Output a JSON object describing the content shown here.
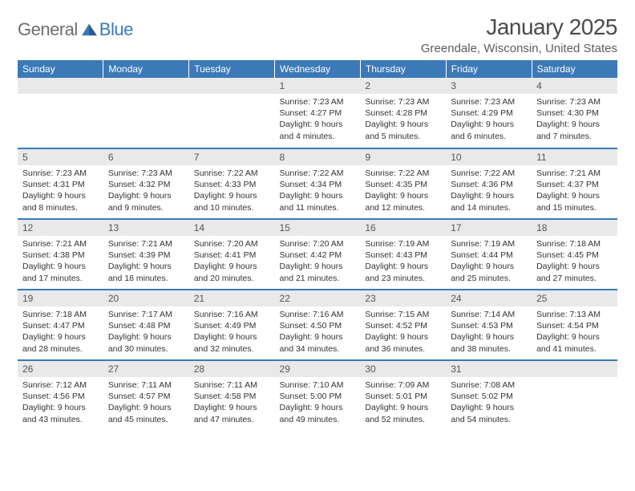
{
  "logo": {
    "general": "General",
    "blue": "Blue"
  },
  "title": "January 2025",
  "location": "Greendale, Wisconsin, United States",
  "colors": {
    "header_bg": "#3b79b7",
    "header_text": "#ffffff",
    "daynum_bg": "#e9e9e9",
    "border": "#3b79b7",
    "logo_gray": "#6d6d6d",
    "logo_blue": "#3b79b7"
  },
  "weekdays": [
    "Sunday",
    "Monday",
    "Tuesday",
    "Wednesday",
    "Thursday",
    "Friday",
    "Saturday"
  ],
  "weeks": [
    [
      null,
      null,
      null,
      {
        "n": "1",
        "sr": "7:23 AM",
        "ss": "4:27 PM",
        "dl": "9 hours and 4 minutes."
      },
      {
        "n": "2",
        "sr": "7:23 AM",
        "ss": "4:28 PM",
        "dl": "9 hours and 5 minutes."
      },
      {
        "n": "3",
        "sr": "7:23 AM",
        "ss": "4:29 PM",
        "dl": "9 hours and 6 minutes."
      },
      {
        "n": "4",
        "sr": "7:23 AM",
        "ss": "4:30 PM",
        "dl": "9 hours and 7 minutes."
      }
    ],
    [
      {
        "n": "5",
        "sr": "7:23 AM",
        "ss": "4:31 PM",
        "dl": "9 hours and 8 minutes."
      },
      {
        "n": "6",
        "sr": "7:23 AM",
        "ss": "4:32 PM",
        "dl": "9 hours and 9 minutes."
      },
      {
        "n": "7",
        "sr": "7:22 AM",
        "ss": "4:33 PM",
        "dl": "9 hours and 10 minutes."
      },
      {
        "n": "8",
        "sr": "7:22 AM",
        "ss": "4:34 PM",
        "dl": "9 hours and 11 minutes."
      },
      {
        "n": "9",
        "sr": "7:22 AM",
        "ss": "4:35 PM",
        "dl": "9 hours and 12 minutes."
      },
      {
        "n": "10",
        "sr": "7:22 AM",
        "ss": "4:36 PM",
        "dl": "9 hours and 14 minutes."
      },
      {
        "n": "11",
        "sr": "7:21 AM",
        "ss": "4:37 PM",
        "dl": "9 hours and 15 minutes."
      }
    ],
    [
      {
        "n": "12",
        "sr": "7:21 AM",
        "ss": "4:38 PM",
        "dl": "9 hours and 17 minutes."
      },
      {
        "n": "13",
        "sr": "7:21 AM",
        "ss": "4:39 PM",
        "dl": "9 hours and 18 minutes."
      },
      {
        "n": "14",
        "sr": "7:20 AM",
        "ss": "4:41 PM",
        "dl": "9 hours and 20 minutes."
      },
      {
        "n": "15",
        "sr": "7:20 AM",
        "ss": "4:42 PM",
        "dl": "9 hours and 21 minutes."
      },
      {
        "n": "16",
        "sr": "7:19 AM",
        "ss": "4:43 PM",
        "dl": "9 hours and 23 minutes."
      },
      {
        "n": "17",
        "sr": "7:19 AM",
        "ss": "4:44 PM",
        "dl": "9 hours and 25 minutes."
      },
      {
        "n": "18",
        "sr": "7:18 AM",
        "ss": "4:45 PM",
        "dl": "9 hours and 27 minutes."
      }
    ],
    [
      {
        "n": "19",
        "sr": "7:18 AM",
        "ss": "4:47 PM",
        "dl": "9 hours and 28 minutes."
      },
      {
        "n": "20",
        "sr": "7:17 AM",
        "ss": "4:48 PM",
        "dl": "9 hours and 30 minutes."
      },
      {
        "n": "21",
        "sr": "7:16 AM",
        "ss": "4:49 PM",
        "dl": "9 hours and 32 minutes."
      },
      {
        "n": "22",
        "sr": "7:16 AM",
        "ss": "4:50 PM",
        "dl": "9 hours and 34 minutes."
      },
      {
        "n": "23",
        "sr": "7:15 AM",
        "ss": "4:52 PM",
        "dl": "9 hours and 36 minutes."
      },
      {
        "n": "24",
        "sr": "7:14 AM",
        "ss": "4:53 PM",
        "dl": "9 hours and 38 minutes."
      },
      {
        "n": "25",
        "sr": "7:13 AM",
        "ss": "4:54 PM",
        "dl": "9 hours and 41 minutes."
      }
    ],
    [
      {
        "n": "26",
        "sr": "7:12 AM",
        "ss": "4:56 PM",
        "dl": "9 hours and 43 minutes."
      },
      {
        "n": "27",
        "sr": "7:11 AM",
        "ss": "4:57 PM",
        "dl": "9 hours and 45 minutes."
      },
      {
        "n": "28",
        "sr": "7:11 AM",
        "ss": "4:58 PM",
        "dl": "9 hours and 47 minutes."
      },
      {
        "n": "29",
        "sr": "7:10 AM",
        "ss": "5:00 PM",
        "dl": "9 hours and 49 minutes."
      },
      {
        "n": "30",
        "sr": "7:09 AM",
        "ss": "5:01 PM",
        "dl": "9 hours and 52 minutes."
      },
      {
        "n": "31",
        "sr": "7:08 AM",
        "ss": "5:02 PM",
        "dl": "9 hours and 54 minutes."
      },
      null
    ]
  ],
  "labels": {
    "sunrise": "Sunrise:",
    "sunset": "Sunset:",
    "daylight": "Daylight:"
  }
}
